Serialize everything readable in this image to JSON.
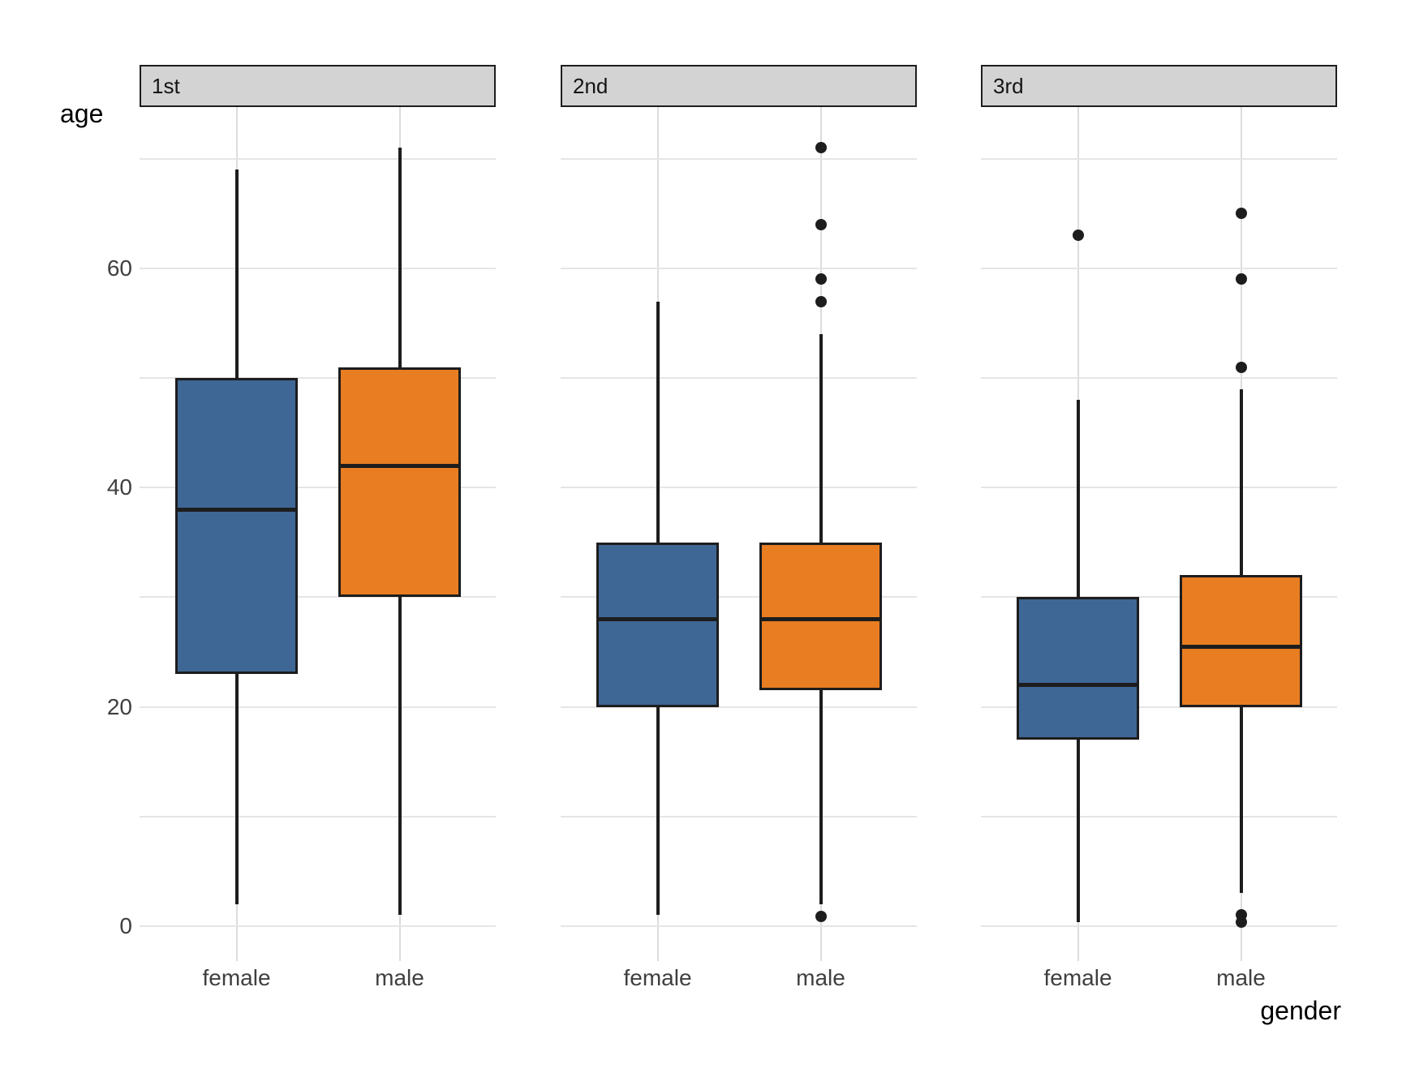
{
  "figure": {
    "y_axis_title": "age",
    "x_axis_title": "gender",
    "x_categories": [
      "female",
      "male"
    ],
    "y_tick_labels": [
      "0",
      "20",
      "40",
      "60"
    ],
    "y_tick_values": [
      0,
      20,
      40,
      60
    ],
    "y_gridline_values": [
      0,
      10,
      20,
      30,
      40,
      50,
      60,
      70
    ]
  },
  "colors": {
    "female_fill": "#3E6795",
    "male_fill": "#E87D22",
    "ink": "#1D1D1D",
    "strip_fill": "#D3D3D3",
    "h_gridline": "#E5E5E5",
    "v_gridline": "#DCDCDC",
    "background": "#FFFFFF"
  },
  "chart_data": {
    "type": "boxplot",
    "title": "",
    "xlabel": "gender",
    "ylabel": "age",
    "facet_variable_values": [
      "1st",
      "2nd",
      "3rd"
    ],
    "categories": [
      "female",
      "male"
    ],
    "ylim": [
      -3.2,
      74.7
    ],
    "y_gridlines_every": 10,
    "y_labels_every": 20,
    "grid": true,
    "legend": false,
    "facets": [
      {
        "label": "1st",
        "groups": [
          {
            "gender": "female",
            "fill": "#3E6795",
            "whisker_low": 2,
            "q1": 23,
            "median": 38,
            "q3": 50,
            "whisker_high": 69,
            "outliers": []
          },
          {
            "gender": "male",
            "fill": "#E87D22",
            "whisker_low": 1,
            "q1": 30,
            "median": 42,
            "q3": 51,
            "whisker_high": 71,
            "outliers": []
          }
        ]
      },
      {
        "label": "2nd",
        "groups": [
          {
            "gender": "female",
            "fill": "#3E6795",
            "whisker_low": 1,
            "q1": 20,
            "median": 28,
            "q3": 35,
            "whisker_high": 57,
            "outliers": []
          },
          {
            "gender": "male",
            "fill": "#E87D22",
            "whisker_low": 2,
            "q1": 21.5,
            "median": 28,
            "q3": 35,
            "whisker_high": 54,
            "outliers": [
              57,
              59,
              64,
              71,
              0.9
            ]
          }
        ]
      },
      {
        "label": "3rd",
        "groups": [
          {
            "gender": "female",
            "fill": "#3E6795",
            "whisker_low": 0.4,
            "q1": 17,
            "median": 22,
            "q3": 30,
            "whisker_high": 48,
            "outliers": [
              63
            ]
          },
          {
            "gender": "male",
            "fill": "#E87D22",
            "whisker_low": 3,
            "q1": 20,
            "median": 25.5,
            "q3": 32,
            "whisker_high": 49,
            "outliers": [
              51,
              59,
              65,
              1,
              0.4
            ]
          }
        ]
      }
    ]
  }
}
